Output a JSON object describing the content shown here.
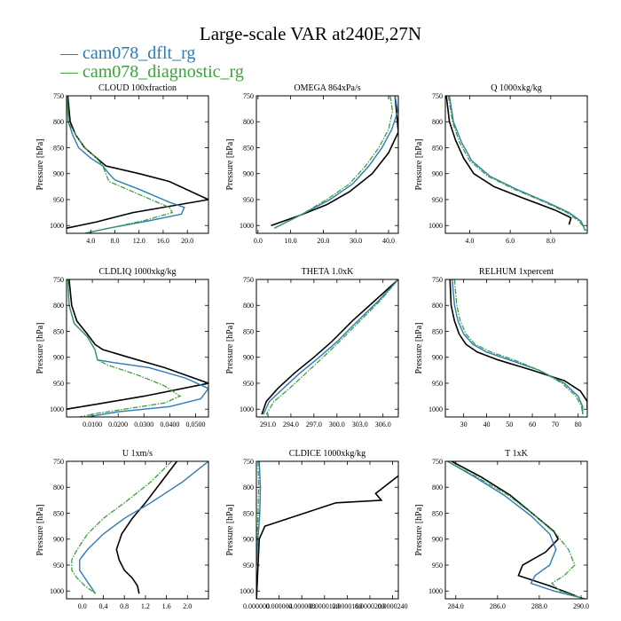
{
  "title": "Large-scale VAR at240E,27N",
  "legend": [
    {
      "label": "cam078_dflt_rg",
      "color": "#2b7bb9"
    },
    {
      "label": "cam078_diagnostic_rg",
      "color": "#3da13d"
    }
  ],
  "colors": {
    "observation": "#000000",
    "dflt": "#2b7bb9",
    "diagnostic": "#3da13d"
  },
  "chart_data": [
    {
      "type": "line",
      "title": "CLOUD  100xfraction",
      "ylabel": "Pressure [hPa]",
      "ylim": [
        1015,
        750
      ],
      "xlim": [
        0,
        23.5
      ],
      "xticks": [
        4.0,
        8.0,
        12.0,
        16.0,
        20.0
      ],
      "xtick_labels": [
        "4.0",
        "8.0",
        "12.0",
        "16.0",
        "20.0"
      ],
      "yticks": [
        750,
        800,
        850,
        900,
        950,
        1000
      ],
      "series": [
        {
          "style": "obs",
          "x": [
            0.2,
            0.6,
            1.5,
            3,
            5,
            6.5,
            12,
            17,
            23.5,
            11,
            5,
            0
          ],
          "y": [
            750,
            800,
            825,
            850,
            870,
            885,
            900,
            915,
            950,
            975,
            993,
            1005
          ]
        },
        {
          "style": "dflt",
          "x": [
            0.1,
            0.3,
            1,
            2,
            4,
            6,
            7,
            8,
            12,
            17,
            19.5,
            19,
            14,
            7,
            3
          ],
          "y": [
            750,
            800,
            825,
            850,
            870,
            885,
            900,
            912,
            930,
            955,
            965,
            978,
            990,
            1005,
            1015
          ]
        },
        {
          "style": "diag",
          "x": [
            0.1,
            0.3,
            1.5,
            3,
            5,
            6,
            6.5,
            7,
            11,
            15,
            17,
            17.5,
            13,
            7,
            3
          ],
          "y": [
            750,
            800,
            825,
            850,
            870,
            885,
            900,
            915,
            935,
            955,
            965,
            975,
            990,
            1005,
            1015
          ]
        }
      ]
    },
    {
      "type": "line",
      "title": "OMEGA  864xPa/s",
      "ylabel": "Pressure [hPa]",
      "ylim": [
        1015,
        750
      ],
      "xlim": [
        -0.5,
        43
      ],
      "xticks": [
        0.0,
        10.0,
        20.0,
        30.0,
        40.0
      ],
      "xtick_labels": [
        "0.0",
        "10.0",
        "20.0",
        "30.0",
        "40.0"
      ],
      "yticks": [
        750,
        800,
        850,
        900,
        950,
        1000
      ],
      "series": [
        {
          "style": "obs",
          "x": [
            42,
            43,
            40,
            35,
            28,
            21,
            13,
            4
          ],
          "y": [
            750,
            820,
            860,
            900,
            935,
            960,
            980,
            1000
          ]
        },
        {
          "style": "dflt",
          "x": [
            42,
            42.8,
            41,
            38,
            34,
            29,
            22,
            13,
            5
          ],
          "y": [
            750,
            780,
            815,
            850,
            885,
            920,
            950,
            980,
            1005
          ]
        },
        {
          "style": "diag",
          "x": [
            40.5,
            41.2,
            40,
            37,
            33,
            28,
            21,
            13,
            5
          ],
          "y": [
            750,
            780,
            815,
            850,
            885,
            920,
            950,
            980,
            1005
          ]
        }
      ]
    },
    {
      "type": "line",
      "title": "Q  1000xkg/kg",
      "ylabel": "Pressure [hPa]",
      "ylim": [
        1015,
        750
      ],
      "xlim": [
        2.8,
        9.8
      ],
      "xticks": [
        4.0,
        6.0,
        8.0
      ],
      "xtick_labels": [
        "4.0",
        "6.0",
        "8.0"
      ],
      "yticks": [
        750,
        800,
        850,
        900,
        950,
        1000
      ],
      "series": [
        {
          "style": "obs",
          "x": [
            2.85,
            3.0,
            3.3,
            3.7,
            4.2,
            5.2,
            6.5,
            8.2,
            9.0,
            8.9
          ],
          "y": [
            750,
            800,
            835,
            870,
            900,
            925,
            945,
            970,
            985,
            998
          ]
        },
        {
          "style": "dflt",
          "x": [
            3.0,
            3.2,
            3.6,
            4.1,
            5.0,
            6.3,
            7.8,
            8.9,
            9.5,
            9.7
          ],
          "y": [
            750,
            800,
            840,
            875,
            905,
            930,
            955,
            975,
            992,
            1010
          ]
        },
        {
          "style": "diag",
          "x": [
            2.95,
            3.15,
            3.5,
            4.0,
            4.9,
            6.2,
            7.7,
            8.8,
            9.4,
            9.75
          ],
          "y": [
            750,
            800,
            840,
            875,
            905,
            930,
            955,
            975,
            992,
            1010
          ]
        }
      ]
    },
    {
      "type": "line",
      "title": "CLDLIQ  1000xkg/kg",
      "ylabel": "Pressure [hPa]",
      "ylim": [
        1015,
        750
      ],
      "xlim": [
        0,
        0.055
      ],
      "xticks": [
        0.01,
        0.02,
        0.03,
        0.04,
        0.05
      ],
      "xtick_labels": [
        "0.0100",
        "0.0200",
        "0.0300",
        "0.0400",
        "0.0500"
      ],
      "yticks": [
        750,
        800,
        850,
        900,
        950,
        1000
      ],
      "series": [
        {
          "style": "obs",
          "x": [
            0.001,
            0.002,
            0.004,
            0.008,
            0.011,
            0.014,
            0.024,
            0.038,
            0.055,
            0.03,
            0.012,
            0
          ],
          "y": [
            750,
            800,
            830,
            855,
            875,
            885,
            900,
            920,
            950,
            975,
            990,
            1000
          ]
        },
        {
          "style": "dflt",
          "x": [
            0.0005,
            0.001,
            0.003,
            0.008,
            0.011,
            0.012,
            0.018,
            0.032,
            0.046,
            0.055,
            0.052,
            0.04,
            0.02,
            0.008
          ],
          "y": [
            750,
            800,
            835,
            860,
            885,
            905,
            910,
            920,
            940,
            960,
            980,
            995,
            1005,
            1015
          ]
        },
        {
          "style": "diag",
          "x": [
            0.0005,
            0.001,
            0.003,
            0.008,
            0.011,
            0.012,
            0.016,
            0.028,
            0.038,
            0.044,
            0.038,
            0.025,
            0.012,
            0.005
          ],
          "y": [
            750,
            800,
            835,
            860,
            885,
            905,
            915,
            935,
            955,
            975,
            988,
            998,
            1008,
            1015
          ]
        }
      ]
    },
    {
      "type": "line",
      "title": "THETA  1.0xK",
      "ylabel": "Pressure [hPa]",
      "ylim": [
        1015,
        750
      ],
      "xlim": [
        289.5,
        308
      ],
      "xticks": [
        291.0,
        294.0,
        297.0,
        300.0,
        303.0,
        306.0
      ],
      "xtick_labels": [
        "291.0",
        "294.0",
        "297.0",
        "300.0",
        "303.0",
        "306.0"
      ],
      "yticks": [
        750,
        800,
        850,
        900,
        950,
        1000
      ],
      "series": [
        {
          "style": "obs",
          "x": [
            308,
            305,
            302,
            299.3,
            297,
            294.5,
            292.3,
            290.8,
            290.2
          ],
          "y": [
            750,
            790,
            830,
            870,
            900,
            930,
            960,
            985,
            1010
          ]
        },
        {
          "style": "dflt",
          "x": [
            308,
            305.5,
            302.7,
            300,
            297.7,
            295.2,
            293,
            291.2,
            290.4
          ],
          "y": [
            750,
            790,
            830,
            870,
            900,
            930,
            960,
            985,
            1010
          ]
        },
        {
          "style": "diag",
          "x": [
            308,
            305.7,
            303,
            300.3,
            298.2,
            296,
            293.8,
            291.8,
            290.8
          ],
          "y": [
            750,
            790,
            830,
            870,
            900,
            930,
            960,
            985,
            1010
          ]
        }
      ]
    },
    {
      "type": "line",
      "title": "RELHUM  1xpercent",
      "ylabel": "Pressure [hPa]",
      "ylim": [
        1015,
        750
      ],
      "xlim": [
        22,
        84
      ],
      "xticks": [
        30,
        40,
        50,
        60,
        70,
        80
      ],
      "xtick_labels": [
        "30",
        "40",
        "50",
        "60",
        "70",
        "80"
      ],
      "yticks": [
        750,
        800,
        850,
        900,
        950,
        1000
      ],
      "series": [
        {
          "style": "obs",
          "x": [
            24,
            24.5,
            26,
            28,
            31,
            36,
            45,
            60,
            74,
            81,
            84,
            84
          ],
          "y": [
            750,
            800,
            830,
            855,
            875,
            890,
            905,
            925,
            945,
            965,
            985,
            1000
          ]
        },
        {
          "style": "dflt",
          "x": [
            25,
            26,
            27.5,
            30,
            34,
            40,
            50,
            63,
            74,
            80,
            82,
            82
          ],
          "y": [
            750,
            800,
            830,
            855,
            875,
            890,
            905,
            925,
            950,
            975,
            995,
            1010
          ]
        },
        {
          "style": "diag",
          "x": [
            26,
            27,
            28.5,
            31,
            35,
            42,
            52,
            63,
            73,
            79,
            81.5,
            82
          ],
          "y": [
            750,
            800,
            830,
            855,
            875,
            890,
            905,
            925,
            950,
            975,
            995,
            1010
          ]
        }
      ]
    },
    {
      "type": "line",
      "title": "U  1xm/s",
      "ylabel": "Pressure [hPa]",
      "ylim": [
        1015,
        750
      ],
      "xlim": [
        -0.3,
        2.4
      ],
      "xticks": [
        0.0,
        0.4,
        0.8,
        1.2,
        1.6,
        2.0
      ],
      "xtick_labels": [
        "0.0",
        "0.4",
        "0.8",
        "1.2",
        "1.6",
        "2.0"
      ],
      "yticks": [
        750,
        800,
        850,
        900,
        950,
        1000
      ],
      "series": [
        {
          "style": "obs",
          "x": [
            1.8,
            1.5,
            1.2,
            0.95,
            0.75,
            0.65,
            0.7,
            0.8,
            0.95,
            1.05,
            1.08
          ],
          "y": [
            750,
            790,
            830,
            860,
            890,
            920,
            940,
            960,
            975,
            990,
            1005
          ]
        },
        {
          "style": "dflt",
          "x": [
            2.4,
            1.9,
            1.3,
            0.8,
            0.4,
            0.1,
            -0.05,
            -0.05,
            0.05,
            0.15,
            0.25
          ],
          "y": [
            750,
            790,
            830,
            860,
            890,
            920,
            940,
            960,
            975,
            990,
            1005
          ]
        },
        {
          "style": "diag",
          "x": [
            1.7,
            1.3,
            0.8,
            0.4,
            0.1,
            -0.1,
            -0.2,
            -0.2,
            -0.1,
            0.05,
            0.25
          ],
          "y": [
            750,
            790,
            830,
            860,
            890,
            920,
            940,
            960,
            975,
            990,
            1005
          ]
        }
      ]
    },
    {
      "type": "line",
      "title": "CLDICE  1000xkg/kg",
      "ylabel": "Pressure [hPa]",
      "ylim": [
        1015,
        750
      ],
      "xlim": [
        0,
        2.5e-05
      ],
      "xticks": [
        0.0,
        4e-06,
        8e-06,
        1.2e-05,
        1.6e-05,
        2e-05,
        2.4e-05
      ],
      "xtick_labels": [
        "0.000000",
        "0.000004",
        "0.000008",
        "0.0000120",
        "0.0000160",
        "0.0000200",
        "0.0000240"
      ],
      "yticks": [
        750,
        800,
        850,
        900,
        950,
        1000
      ],
      "series": [
        {
          "style": "obs",
          "x": [
            2.5e-05,
            2.1e-05,
            2.2e-05,
            1.4e-05,
            1.5e-06,
            5e-07,
            0
          ],
          "y": [
            778,
            812,
            825,
            830,
            875,
            900,
            1020
          ]
        },
        {
          "style": "dflt",
          "x": [
            5e-07,
            7e-07,
            6e-07,
            4e-07,
            2e-07,
            0
          ],
          "y": [
            750,
            800,
            850,
            880,
            910,
            950
          ]
        },
        {
          "style": "diag",
          "x": [
            3e-07,
            4e-07,
            3e-07,
            2e-07,
            1e-07,
            0
          ],
          "y": [
            750,
            800,
            850,
            880,
            910,
            950
          ]
        }
      ]
    },
    {
      "type": "line",
      "title": "T  1xK",
      "ylabel": "Pressure [hPa]",
      "ylim": [
        1015,
        750
      ],
      "xlim": [
        283.5,
        290.3
      ],
      "xticks": [
        284.0,
        286.0,
        288.0,
        290.0
      ],
      "xtick_labels": [
        "284.0",
        "286.0",
        "288.0",
        "290.0"
      ],
      "yticks": [
        750,
        800,
        850,
        900,
        950,
        1000
      ],
      "series": [
        {
          "style": "obs",
          "x": [
            283.8,
            285.2,
            286.6,
            287.8,
            288.7,
            288.9,
            288.3,
            287.2,
            287.0,
            288.5,
            289.8
          ],
          "y": [
            750,
            780,
            815,
            855,
            885,
            900,
            925,
            950,
            970,
            990,
            1010
          ]
        },
        {
          "style": "dflt",
          "x": [
            283.6,
            284.9,
            286.3,
            287.6,
            288.5,
            288.8,
            288.5,
            287.8,
            287.6,
            288.7,
            290.2
          ],
          "y": [
            750,
            780,
            815,
            855,
            890,
            920,
            950,
            970,
            985,
            1000,
            1015
          ]
        },
        {
          "style": "diag",
          "x": [
            283.6,
            285,
            286.5,
            287.8,
            288.8,
            289.4,
            289.7,
            289.2,
            288.6,
            289,
            290.2
          ],
          "y": [
            750,
            780,
            815,
            855,
            890,
            920,
            950,
            970,
            985,
            1000,
            1015
          ]
        }
      ]
    }
  ]
}
